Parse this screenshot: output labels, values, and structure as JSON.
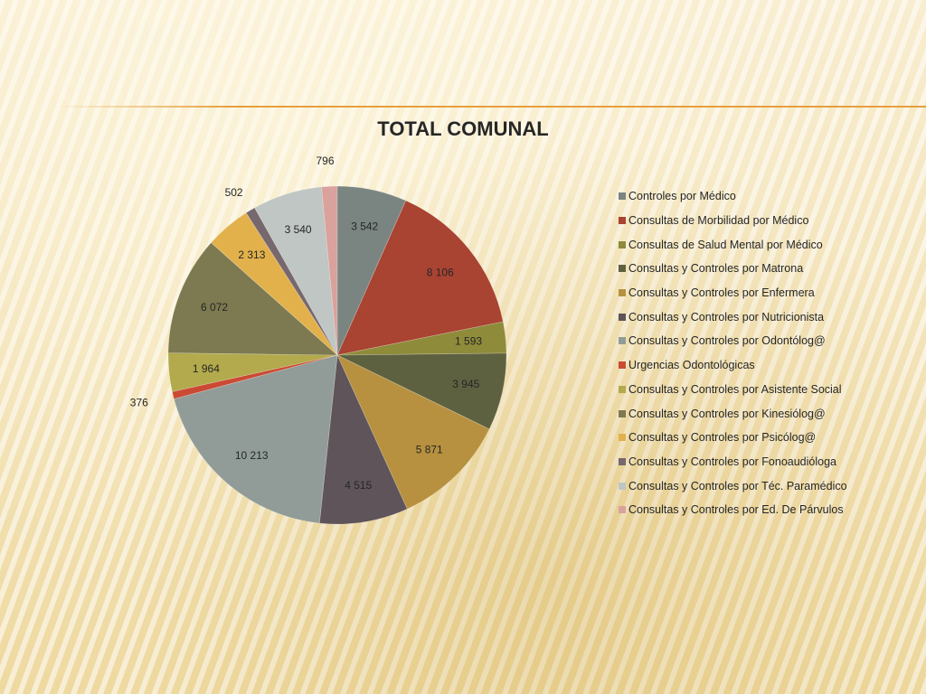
{
  "slide": {
    "background_color": "#f4e6bd",
    "divider_color": "#e6a040"
  },
  "chart_data": {
    "type": "pie",
    "title": "TOTAL COMUNAL",
    "legend_position": "right",
    "categories": [
      "Controles por Médico",
      "Consultas de Morbilidad por Médico",
      "Consultas de Salud Mental por Médico",
      "Consultas y Controles por Matrona",
      "Consultas y Controles por Enfermera",
      "Consultas y Controles por Nutricionista",
      "Consultas y Controles por Odontólog@",
      "Urgencias Odontológicas",
      "Consultas y Controles por Asistente Social",
      "Consultas y Controles por Kinesiólog@",
      "Consultas y Controles por Psicólog@",
      "Consultas y Controles por Fonoaudióloga",
      "Consultas y Controles por Téc. Paramédico",
      "Consultas y Controles por Ed. De Párvulos"
    ],
    "values": [
      3542,
      8106,
      1593,
      3945,
      5871,
      4515,
      10213,
      376,
      1964,
      6072,
      2313,
      502,
      3540,
      796
    ],
    "data_labels": [
      "3 542",
      "8 106",
      "1 593",
      "3 945",
      "5 871",
      "4 515",
      "10 213",
      "376",
      "1 964",
      "6 072",
      "2 313",
      "502",
      "3 540",
      "796"
    ],
    "colors": [
      "#7a8581",
      "#a94332",
      "#8e8b3a",
      "#5e6140",
      "#b7913f",
      "#5f545a",
      "#919c98",
      "#cb4a34",
      "#b2aa4c",
      "#7d7950",
      "#e2b14b",
      "#77686e",
      "#bfc6c3",
      "#daa29d"
    ]
  }
}
